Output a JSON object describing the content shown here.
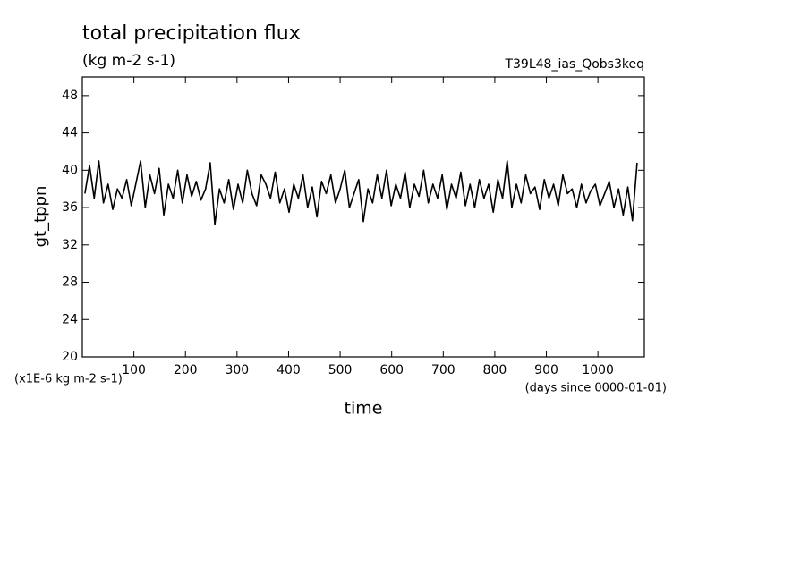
{
  "chart_data": {
    "type": "line",
    "title": "total precipitation flux",
    "subtitle": "(kg m-2 s-1)",
    "experiment": "T39L48_ias_Qobs3keq",
    "y_label": "gt_tppn",
    "x_label": "time",
    "y_unit": "(x1E-6 kg m-2 s-1)",
    "x_unit": "(days since 0000-01-01)",
    "xlim": [
      0,
      1090
    ],
    "ylim": [
      20,
      50
    ],
    "xticks": [
      100,
      200,
      300,
      400,
      500,
      600,
      700,
      800,
      900,
      1000
    ],
    "yticks": [
      20,
      24,
      28,
      32,
      36,
      40,
      44,
      48
    ],
    "series": [
      {
        "color": "#000000",
        "x": [
          5,
          14,
          23,
          32,
          41,
          50,
          59,
          68,
          77,
          86,
          95,
          104,
          113,
          122,
          131,
          140,
          149,
          158,
          167,
          176,
          185,
          194,
          203,
          212,
          221,
          230,
          239,
          248,
          257,
          266,
          275,
          284,
          293,
          302,
          311,
          320,
          329,
          338,
          347,
          356,
          365,
          374,
          383,
          392,
          401,
          410,
          419,
          428,
          437,
          446,
          455,
          464,
          473,
          482,
          491,
          500,
          509,
          518,
          527,
          536,
          545,
          554,
          563,
          572,
          581,
          590,
          599,
          608,
          617,
          626,
          635,
          644,
          653,
          662,
          671,
          680,
          689,
          698,
          707,
          716,
          725,
          734,
          743,
          752,
          761,
          770,
          779,
          788,
          797,
          806,
          815,
          824,
          833,
          842,
          851,
          860,
          869,
          878,
          887,
          896,
          905,
          914,
          923,
          932,
          941,
          950,
          959,
          968,
          977,
          986,
          995,
          1004,
          1013,
          1022,
          1031,
          1040,
          1049,
          1058,
          1067,
          1076
        ],
        "values": [
          37.5,
          40.5,
          37,
          41,
          36.5,
          38.5,
          35.8,
          38,
          37,
          39,
          36.2,
          38.6,
          41,
          36,
          39.5,
          37.5,
          40.2,
          35.2,
          38.5,
          37,
          40,
          36.5,
          39.5,
          37.2,
          38.8,
          36.8,
          38,
          40.8,
          34.2,
          38,
          36.5,
          39,
          35.8,
          38.5,
          36.5,
          40,
          37.5,
          36.2,
          39.5,
          38.5,
          37,
          39.8,
          36.5,
          38,
          35.5,
          38.5,
          37,
          39.5,
          36,
          38.2,
          35,
          38.8,
          37.5,
          39.5,
          36.5,
          38,
          40,
          36,
          37.5,
          39,
          34.5,
          38,
          36.5,
          39.5,
          37,
          40,
          36.2,
          38.5,
          37,
          39.8,
          36,
          38.5,
          37.2,
          40,
          36.5,
          38.5,
          37,
          39.5,
          35.8,
          38.5,
          37,
          39.8,
          36.2,
          38.5,
          36,
          39,
          37,
          38.5,
          35.5,
          39,
          37,
          41,
          36,
          38.5,
          36.5,
          39.5,
          37.5,
          38.2,
          35.8,
          39,
          37,
          38.5,
          36.2,
          39.5,
          37.5,
          38,
          36,
          38.5,
          36.5,
          37.8,
          38.5,
          36.2,
          37.5,
          38.8,
          36,
          38,
          35.2,
          38.2,
          34.6,
          40.8
        ]
      }
    ]
  }
}
